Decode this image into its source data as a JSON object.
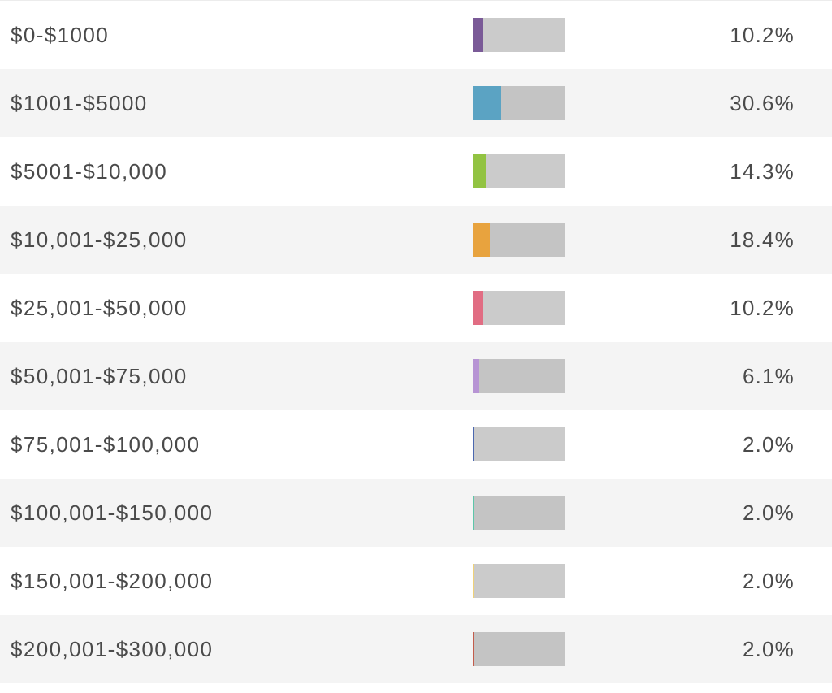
{
  "chart_data": {
    "type": "bar",
    "categories": [
      "$0-$1000",
      "$1001-$5000",
      "$5001-$10,000",
      "$10,001-$25,000",
      "$25,001-$50,000",
      "$50,001-$75,000",
      "$75,001-$100,000",
      "$100,001-$150,000",
      "$150,001-$200,000",
      "$200,001-$300,000"
    ],
    "values": [
      10.2,
      30.6,
      14.3,
      18.4,
      10.2,
      6.1,
      2.0,
      2.0,
      2.0,
      2.0
    ],
    "value_labels": [
      "10.2%",
      "30.6%",
      "14.3%",
      "18.4%",
      "10.2%",
      "6.1%",
      "2.0%",
      "2.0%",
      "2.0%",
      "2.0%"
    ],
    "ylim": [
      0,
      100
    ],
    "colors": [
      "#7a5a97",
      "#5ba3c3",
      "#92c342",
      "#e8a33e",
      "#e16d83",
      "#b794d4",
      "#4b68b0",
      "#5cc6a9",
      "#efd178",
      "#c35c4c"
    ],
    "track_colors": [
      "#cbcbcb",
      "#c4c4c4"
    ],
    "title": "",
    "xlabel": "",
    "ylabel": ""
  }
}
